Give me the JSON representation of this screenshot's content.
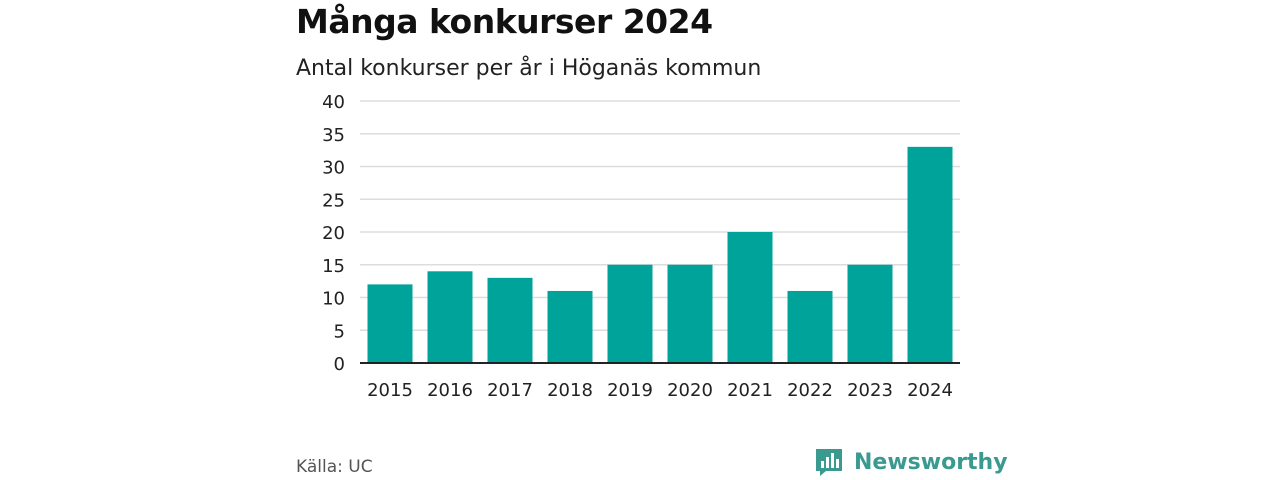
{
  "title": "Många konkurser 2024",
  "subtitle": "Antal konkurser per år i Höganäs kommun",
  "source": "Källa: UC",
  "brand": {
    "name": "Newsworthy",
    "icon": "bar-chart-speech-bubble-icon",
    "color": "#3a9a90"
  },
  "colors": {
    "bar": "#00a39a",
    "grid": "#dddddd",
    "axis": "#222222"
  },
  "chart_data": {
    "type": "bar",
    "title": "Många konkurser 2024",
    "subtitle": "Antal konkurser per år i Höganäs kommun",
    "xlabel": "",
    "ylabel": "",
    "categories": [
      "2015",
      "2016",
      "2017",
      "2018",
      "2019",
      "2020",
      "2021",
      "2022",
      "2023",
      "2024"
    ],
    "values": [
      12,
      14,
      13,
      11,
      15,
      15,
      20,
      11,
      15,
      33
    ],
    "ylim": [
      0,
      40
    ],
    "yticks": [
      0,
      5,
      10,
      15,
      20,
      25,
      30,
      35,
      40
    ],
    "grid": true,
    "legend": "none"
  }
}
